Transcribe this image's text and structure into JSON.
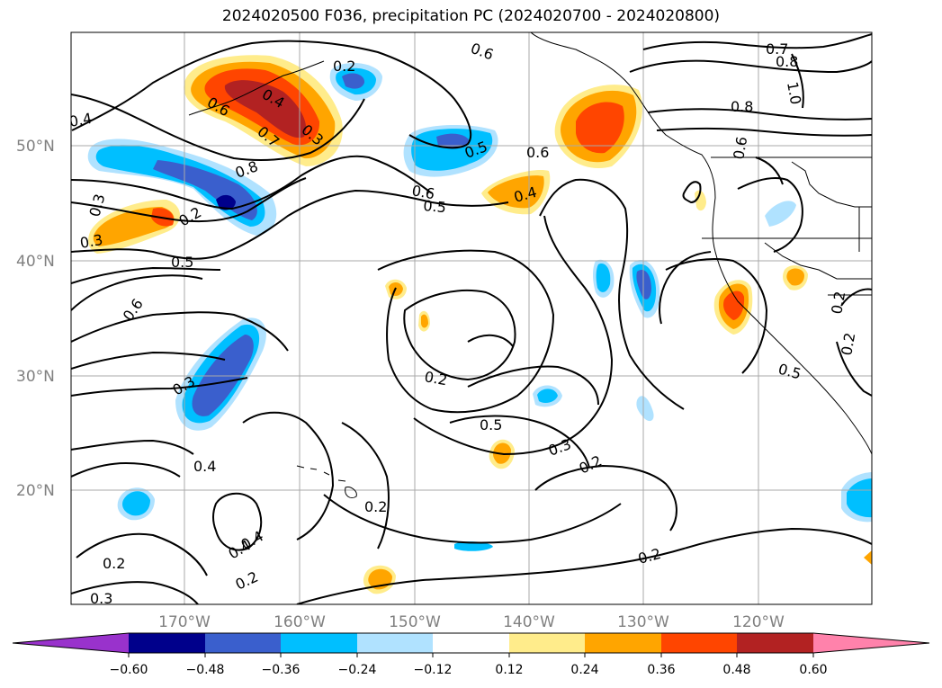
{
  "title": "2024020500 F036, precipitation PC (2024020700 - 2024020800)",
  "lat_labels": [
    "50°N",
    "40°N",
    "30°N",
    "20°N"
  ],
  "lon_labels": [
    "170°W",
    "160°W",
    "150°W",
    "140°W",
    "130°W",
    "120°W"
  ],
  "colorbar": {
    "tick_labels": [
      "−0.60",
      "−0.48",
      "−0.36",
      "−0.24",
      "−0.12",
      "0.12",
      "0.24",
      "0.36",
      "0.48",
      "0.60"
    ],
    "colors": [
      "#9932cc",
      "#00008b",
      "#3a5fcd",
      "#00bfff",
      "#b0e2ff",
      "#ffffff",
      "#ffec8b",
      "#ffa500",
      "#ff4500",
      "#b22222",
      "#ff82ab"
    ]
  },
  "contour_labels": [
    "0.6",
    "0.2",
    "0.7",
    "0.8",
    "1.0",
    "0.4",
    "0.6",
    "0.4",
    "0.3",
    "0.7",
    "0.8",
    "0.4",
    "0.3",
    "0.2",
    "0.3",
    "0.5",
    "0.6",
    "0.5",
    "0.6",
    "0.5",
    "0.6",
    "0.4",
    "0.8",
    "0.6",
    "0.2",
    "0.3",
    "0.2",
    "0.5",
    "0.3",
    "0.2",
    "0.4",
    "0.2",
    "0.4",
    "0.2",
    "0.2",
    "0.3",
    "0.2",
    "0.5",
    "0.2"
  ]
}
